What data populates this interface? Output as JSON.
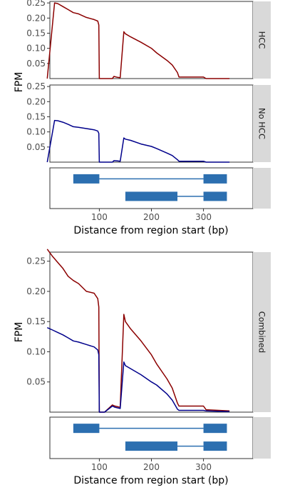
{
  "chart_data": [
    {
      "type": "line",
      "ylabel": "FPM",
      "xlabel": "Distance from region start (bp)",
      "xlim": [
        5,
        395
      ],
      "x_ticks": [
        "100",
        "200",
        "300"
      ],
      "x_tick_values": [
        100,
        200,
        300
      ],
      "colors": {
        "hcc": "#8b0000",
        "nohcc": "#00008b",
        "gene": "#2c6fb0"
      },
      "facets": [
        {
          "strip": "HCC",
          "ylim": [
            0,
            0.255
          ],
          "y_ticks": [
            "0.05",
            "0.10",
            "0.15",
            "0.20",
            "0.25"
          ],
          "y_tick_values": [
            0.05,
            0.1,
            0.15,
            0.2,
            0.25
          ],
          "series": [
            {
              "color": "#8b0000",
              "points": [
                [
                  0,
                  0.0
                ],
                [
                  14,
                  0.25
                ],
                [
                  20,
                  0.248
                ],
                [
                  30,
                  0.238
                ],
                [
                  40,
                  0.228
                ],
                [
                  50,
                  0.218
                ],
                [
                  60,
                  0.214
                ],
                [
                  75,
                  0.202
                ],
                [
                  90,
                  0.195
                ],
                [
                  97,
                  0.19
                ],
                [
                  99,
                  0.177
                ],
                [
                  100,
                  0.0
                ],
                [
                  125,
                  0.0
                ],
                [
                  128,
                  0.007
                ],
                [
                  135,
                  0.004
                ],
                [
                  140,
                  0.003
                ],
                [
                  147,
                  0.155
                ],
                [
                  150,
                  0.148
                ],
                [
                  160,
                  0.138
                ],
                [
                  180,
                  0.12
                ],
                [
                  200,
                  0.1
                ],
                [
                  210,
                  0.085
                ],
                [
                  230,
                  0.06
                ],
                [
                  240,
                  0.045
                ],
                [
                  250,
                  0.02
                ],
                [
                  253,
                  0.005
                ],
                [
                  300,
                  0.005
                ],
                [
                  305,
                  0.0
                ],
                [
                  350,
                  0.0
                ]
              ]
            }
          ]
        },
        {
          "strip": "No HCC",
          "ylim": [
            0,
            0.255
          ],
          "y_ticks": [
            "0.05",
            "0.10",
            "0.15",
            "0.20",
            "0.25"
          ],
          "y_tick_values": [
            0.05,
            0.1,
            0.15,
            0.2,
            0.25
          ],
          "series": [
            {
              "color": "#00008b",
              "points": [
                [
                  0,
                  0.0
                ],
                [
                  14,
                  0.138
                ],
                [
                  20,
                  0.137
                ],
                [
                  30,
                  0.132
                ],
                [
                  40,
                  0.125
                ],
                [
                  50,
                  0.117
                ],
                [
                  60,
                  0.115
                ],
                [
                  75,
                  0.111
                ],
                [
                  90,
                  0.107
                ],
                [
                  97,
                  0.103
                ],
                [
                  99,
                  0.095
                ],
                [
                  100,
                  0.0
                ],
                [
                  125,
                  0.0
                ],
                [
                  128,
                  0.005
                ],
                [
                  135,
                  0.004
                ],
                [
                  140,
                  0.003
                ],
                [
                  147,
                  0.08
                ],
                [
                  150,
                  0.076
                ],
                [
                  160,
                  0.072
                ],
                [
                  180,
                  0.06
                ],
                [
                  200,
                  0.052
                ],
                [
                  210,
                  0.045
                ],
                [
                  230,
                  0.03
                ],
                [
                  240,
                  0.022
                ],
                [
                  250,
                  0.008
                ],
                [
                  253,
                  0.003
                ],
                [
                  300,
                  0.003
                ],
                [
                  305,
                  0.0
                ],
                [
                  350,
                  0.0
                ]
              ]
            }
          ]
        },
        {
          "strip": "Combined",
          "ylim": [
            0,
            0.265
          ],
          "y_ticks": [
            "0.05",
            "0.10",
            "0.15",
            "0.20",
            "0.25"
          ],
          "y_tick_values": [
            0.05,
            0.1,
            0.15,
            0.2,
            0.25
          ],
          "series": [
            {
              "color": "#8b0000",
              "points": [
                [
                  0,
                  0.27
                ],
                [
                  10,
                  0.258
                ],
                [
                  20,
                  0.248
                ],
                [
                  30,
                  0.238
                ],
                [
                  40,
                  0.225
                ],
                [
                  50,
                  0.218
                ],
                [
                  60,
                  0.213
                ],
                [
                  75,
                  0.2
                ],
                [
                  90,
                  0.197
                ],
                [
                  97,
                  0.188
                ],
                [
                  99,
                  0.174
                ],
                [
                  100,
                  0.0
                ],
                [
                  110,
                  0.0
                ],
                [
                  125,
                  0.012
                ],
                [
                  130,
                  0.01
                ],
                [
                  140,
                  0.008
                ],
                [
                  147,
                  0.162
                ],
                [
                  150,
                  0.15
                ],
                [
                  160,
                  0.138
                ],
                [
                  180,
                  0.118
                ],
                [
                  200,
                  0.095
                ],
                [
                  210,
                  0.08
                ],
                [
                  230,
                  0.055
                ],
                [
                  240,
                  0.04
                ],
                [
                  250,
                  0.015
                ],
                [
                  253,
                  0.01
                ],
                [
                  300,
                  0.01
                ],
                [
                  305,
                  0.004
                ],
                [
                  350,
                  0.002
                ]
              ]
            },
            {
              "color": "#00008b",
              "points": [
                [
                  0,
                  0.14
                ],
                [
                  10,
                  0.136
                ],
                [
                  20,
                  0.132
                ],
                [
                  30,
                  0.128
                ],
                [
                  40,
                  0.123
                ],
                [
                  50,
                  0.118
                ],
                [
                  60,
                  0.116
                ],
                [
                  75,
                  0.112
                ],
                [
                  90,
                  0.108
                ],
                [
                  97,
                  0.103
                ],
                [
                  99,
                  0.095
                ],
                [
                  100,
                  0.0
                ],
                [
                  110,
                  0.0
                ],
                [
                  125,
                  0.01
                ],
                [
                  130,
                  0.008
                ],
                [
                  140,
                  0.006
                ],
                [
                  147,
                  0.083
                ],
                [
                  150,
                  0.077
                ],
                [
                  160,
                  0.072
                ],
                [
                  180,
                  0.062
                ],
                [
                  200,
                  0.05
                ],
                [
                  210,
                  0.045
                ],
                [
                  230,
                  0.03
                ],
                [
                  240,
                  0.02
                ],
                [
                  250,
                  0.005
                ],
                [
                  253,
                  0.003
                ],
                [
                  300,
                  0.003
                ],
                [
                  305,
                  0.002
                ],
                [
                  350,
                  0.001
                ]
              ]
            }
          ]
        }
      ],
      "gene_models": [
        {
          "exons": [
            [
              50,
              100
            ],
            [
              300,
              345
            ]
          ],
          "introns": [
            [
              100,
              300
            ]
          ]
        },
        {
          "exons": [
            [
              150,
              250
            ],
            [
              300,
              345
            ]
          ],
          "introns": [
            [
              250,
              300
            ]
          ]
        }
      ]
    }
  ]
}
